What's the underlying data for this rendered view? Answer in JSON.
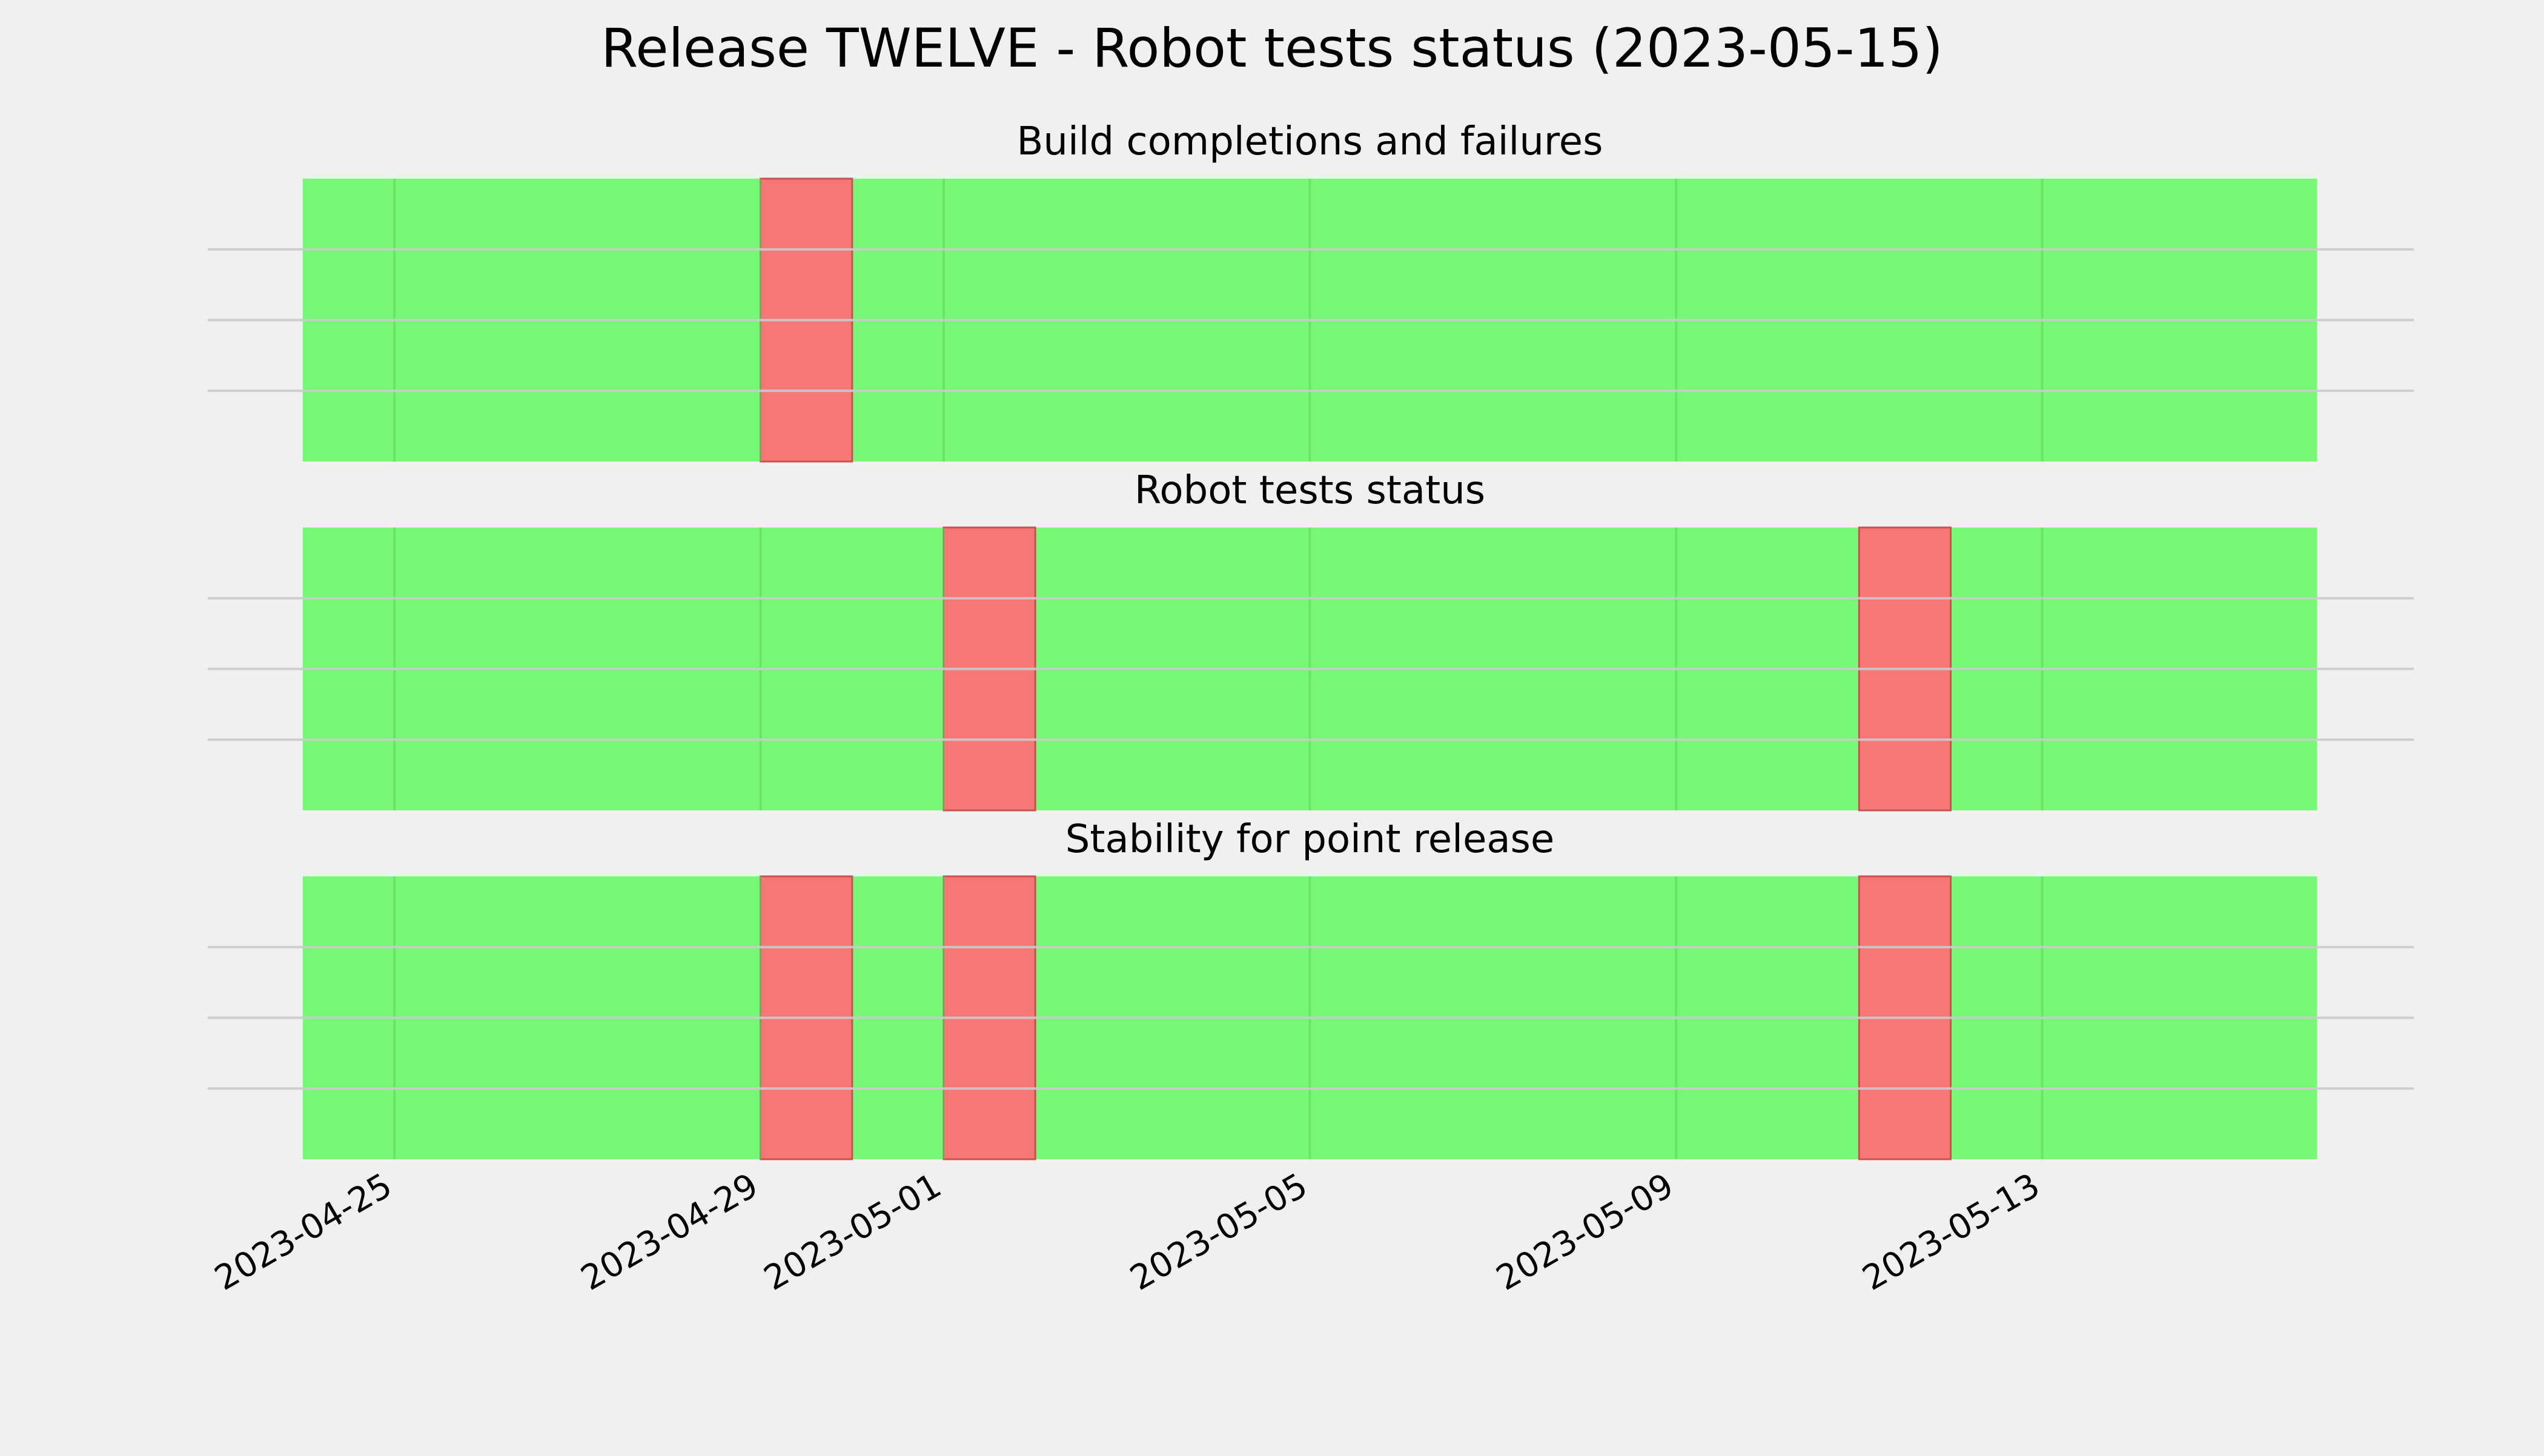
{
  "colors": {
    "background": "#f0f0f0",
    "pass": "#76f776",
    "fail": "#f77776",
    "gridline": "#cbcbcb",
    "vgrid": "#5fd65f",
    "text": "#000000"
  },
  "chart_data": {
    "type": "timeline-status",
    "title": "Release TWELVE - Robot tests status (2023-05-15)",
    "x_range": [
      "2023-04-24",
      "2023-05-16"
    ],
    "x_ticks": [
      "2023-04-25",
      "2023-04-29",
      "2023-05-01",
      "2023-05-05",
      "2023-05-09",
      "2023-05-13"
    ],
    "grid": true,
    "panels": [
      {
        "title": "Build completions and failures",
        "fail_intervals": [
          [
            "2023-04-29",
            "2023-04-30"
          ]
        ]
      },
      {
        "title": "Robot tests status",
        "fail_intervals": [
          [
            "2023-05-01",
            "2023-05-02"
          ],
          [
            "2023-05-11",
            "2023-05-12"
          ]
        ]
      },
      {
        "title": "Stability for point release",
        "fail_intervals": [
          [
            "2023-04-29",
            "2023-04-30"
          ],
          [
            "2023-05-01",
            "2023-05-02"
          ],
          [
            "2023-05-11",
            "2023-05-12"
          ]
        ]
      }
    ]
  }
}
